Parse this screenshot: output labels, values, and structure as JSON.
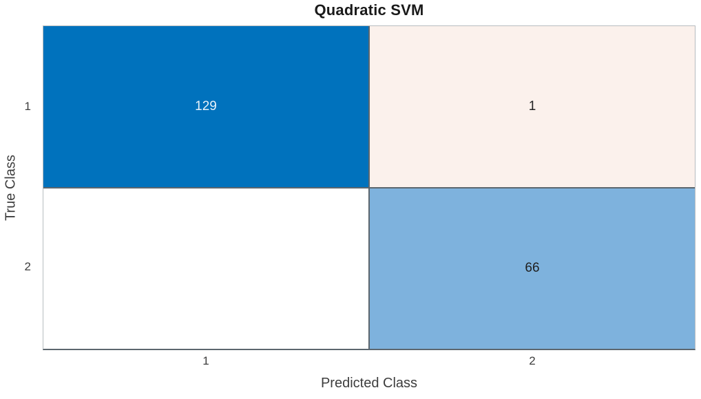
{
  "chart_data": {
    "type": "heatmap",
    "variant": "confusion-matrix",
    "title": "Quadratic SVM",
    "xlabel": "Predicted Class",
    "ylabel": "True Class",
    "x_tick_labels": [
      "1",
      "2"
    ],
    "y_tick_labels": [
      "1",
      "2"
    ],
    "categories_true_class": [
      "1",
      "2"
    ],
    "categories_predicted_class": [
      "1",
      "2"
    ],
    "matrix": [
      [
        129,
        1
      ],
      [
        null,
        66
      ]
    ],
    "cells": [
      {
        "true_class": "1",
        "predicted_class": "1",
        "value": "129",
        "bg": "#0072BD",
        "fg": "#E8F2FA"
      },
      {
        "true_class": "1",
        "predicted_class": "2",
        "value": "1",
        "bg": "#FBF1EC",
        "fg": "#1f1f1f"
      },
      {
        "true_class": "2",
        "predicted_class": "1",
        "value": "",
        "bg": "#FFFFFF",
        "fg": "#1f1f1f"
      },
      {
        "true_class": "2",
        "predicted_class": "2",
        "value": "66",
        "bg": "#7EB2DD",
        "fg": "#1f1f1f"
      }
    ],
    "grid_on": true,
    "grid_line_color": "#5c666e",
    "outer_border_color": "#b7bcbf",
    "axis_text_color": "#3d3d3d",
    "title_color": "#1a1a1a",
    "legend_position": "none"
  }
}
